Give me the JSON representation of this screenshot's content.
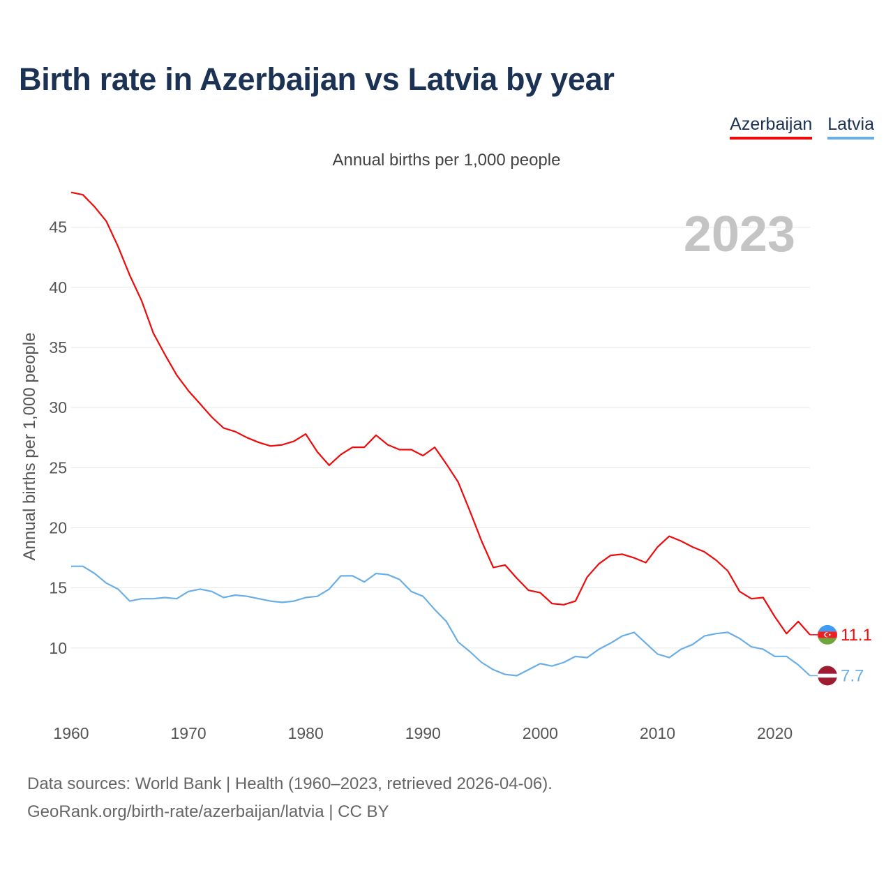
{
  "title": "Birth rate in Azerbaijan vs Latvia by year",
  "subtitle": "Annual births per 1,000 people",
  "source_line1": "Data sources: World Bank | Health (1960–2023, retrieved 2026-04-06).",
  "source_line2": "GeoRank.org/birth-rate/azerbaijan/latvia | CC BY",
  "chart_data": {
    "type": "line",
    "title": "Birth rate in Azerbaijan vs Latvia by year",
    "ylabel": "Annual births per 1,000 people",
    "xlabel": "",
    "year_label": "2023",
    "xlim": [
      1960,
      2023
    ],
    "ylim": [
      5,
      48
    ],
    "x_ticks": [
      "1960",
      "1970",
      "1980",
      "1990",
      "2000",
      "2010",
      "2020"
    ],
    "y_ticks": [
      "10",
      "15",
      "20",
      "25",
      "30",
      "35",
      "40",
      "45"
    ],
    "grid": true,
    "legend_position": "top-right",
    "x": [
      1960,
      1961,
      1962,
      1963,
      1964,
      1965,
      1966,
      1967,
      1968,
      1969,
      1970,
      1971,
      1972,
      1973,
      1974,
      1975,
      1976,
      1977,
      1978,
      1979,
      1980,
      1981,
      1982,
      1983,
      1984,
      1985,
      1986,
      1987,
      1988,
      1989,
      1990,
      1991,
      1992,
      1993,
      1994,
      1995,
      1996,
      1997,
      1998,
      1999,
      2000,
      2001,
      2002,
      2003,
      2004,
      2005,
      2006,
      2007,
      2008,
      2009,
      2010,
      2011,
      2012,
      2013,
      2014,
      2015,
      2016,
      2017,
      2018,
      2019,
      2020,
      2021,
      2022,
      2023
    ],
    "series": [
      {
        "name": "Azerbaijan",
        "color": "#ee0a0a",
        "end_label": "11.1",
        "flag": "azerbaijan-flag",
        "values": [
          47.9,
          47.7,
          46.7,
          45.5,
          43.4,
          41.0,
          38.9,
          36.2,
          34.4,
          32.7,
          31.4,
          30.3,
          29.2,
          28.3,
          28.0,
          27.5,
          27.1,
          26.8,
          26.9,
          27.2,
          27.8,
          26.3,
          25.2,
          26.1,
          26.7,
          26.7,
          27.7,
          26.9,
          26.5,
          26.5,
          26.0,
          26.7,
          25.3,
          23.8,
          21.4,
          18.9,
          16.7,
          16.9,
          15.8,
          14.8,
          14.6,
          13.7,
          13.6,
          13.9,
          15.9,
          17.0,
          17.7,
          17.8,
          17.5,
          17.1,
          18.4,
          19.3,
          18.9,
          18.4,
          18.0,
          17.3,
          16.4,
          14.7,
          14.1,
          14.2,
          12.6,
          11.2,
          12.2,
          11.1
        ]
      },
      {
        "name": "Latvia",
        "color": "#6aaee6",
        "end_label": "7.7",
        "flag": "latvia-flag",
        "values": [
          16.8,
          16.8,
          16.2,
          15.4,
          14.9,
          13.9,
          14.1,
          14.1,
          14.2,
          14.1,
          14.7,
          14.9,
          14.7,
          14.2,
          14.4,
          14.3,
          14.1,
          13.9,
          13.8,
          13.9,
          14.2,
          14.3,
          14.9,
          16.0,
          16.0,
          15.5,
          16.2,
          16.1,
          15.7,
          14.7,
          14.3,
          13.2,
          12.2,
          10.5,
          9.7,
          8.8,
          8.2,
          7.8,
          7.7,
          8.2,
          8.7,
          8.5,
          8.8,
          9.3,
          9.2,
          9.9,
          10.4,
          11.0,
          11.3,
          10.4,
          9.5,
          9.2,
          9.9,
          10.3,
          11.0,
          11.2,
          11.3,
          10.8,
          10.1,
          9.9,
          9.3,
          9.3,
          8.6,
          7.7
        ]
      }
    ]
  }
}
